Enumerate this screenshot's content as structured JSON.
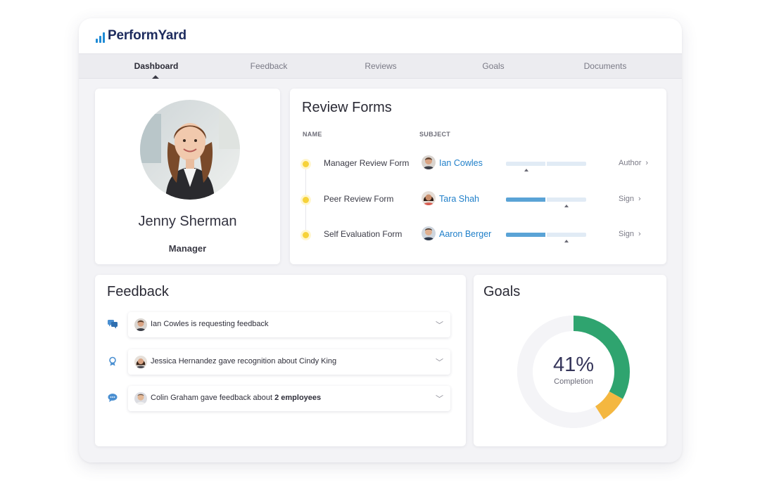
{
  "app": {
    "brand": "PerformYard"
  },
  "nav": {
    "tabs": [
      {
        "label": "Dashboard",
        "active": true
      },
      {
        "label": "Feedback",
        "active": false
      },
      {
        "label": "Reviews",
        "active": false
      },
      {
        "label": "Goals",
        "active": false
      },
      {
        "label": "Documents",
        "active": false
      }
    ]
  },
  "profile": {
    "name": "Jenny Sherman",
    "role": "Manager"
  },
  "review_forms": {
    "title": "Review Forms",
    "columns": {
      "name": "NAME",
      "subject": "SUBJECT"
    },
    "rows": [
      {
        "form": "Manager Review Form",
        "subject": "Ian Cowles",
        "action": "Author",
        "progress": 0.0
      },
      {
        "form": "Peer Review Form",
        "subject": "Tara Shah",
        "action": "Sign",
        "progress": 0.5
      },
      {
        "form": "Self Evaluation Form",
        "subject": "Aaron Berger",
        "action": "Sign",
        "progress": 0.5
      }
    ]
  },
  "feedback": {
    "title": "Feedback",
    "items": [
      {
        "text": "Ian Cowles is requesting feedback",
        "icon": "chat-bubbles-icon"
      },
      {
        "text": "Jessica Hernandez gave recognition about Cindy King",
        "icon": "award-ribbon-icon"
      },
      {
        "text_prefix": "Colin Graham gave feedback about ",
        "text_bold": "2 employees",
        "icon": "speech-bubble-icon"
      }
    ]
  },
  "goals": {
    "title": "Goals",
    "completion_value": "41%",
    "completion_label": "Completion",
    "segments": [
      {
        "fraction": 0.33,
        "color": "#2fa46f"
      },
      {
        "fraction": 0.08,
        "color": "#f4b740"
      }
    ],
    "track_color": "#ececf0"
  },
  "colors": {
    "accent": "#1f7fc9",
    "dot": "#f6d23a",
    "progress": "#5aa3d6"
  }
}
